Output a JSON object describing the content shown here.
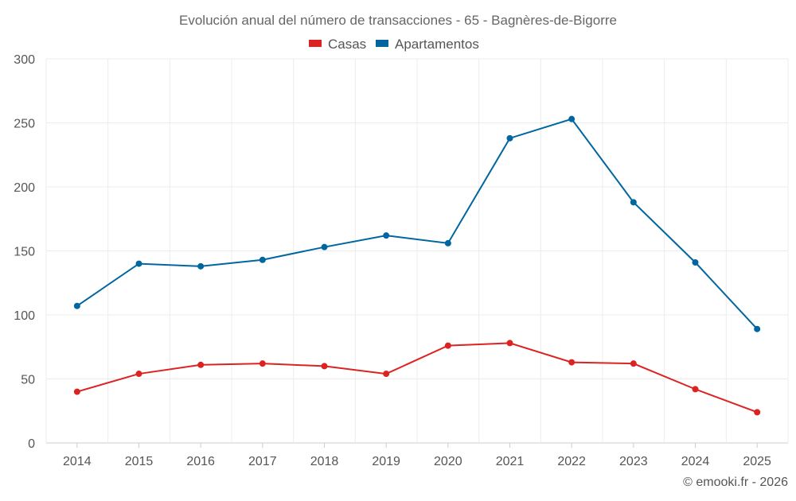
{
  "chart_data": {
    "type": "line",
    "title": "Evolución anual del número de transacciones - 65 - Bagnères-de-Bigorre",
    "categories": [
      "2014",
      "2015",
      "2016",
      "2017",
      "2018",
      "2019",
      "2020",
      "2021",
      "2022",
      "2023",
      "2024",
      "2025"
    ],
    "series": [
      {
        "name": "Casas",
        "color": "#dd2222",
        "values": [
          40,
          54,
          61,
          62,
          60,
          54,
          76,
          78,
          63,
          62,
          42,
          24
        ]
      },
      {
        "name": "Apartamentos",
        "color": "#0066a0",
        "values": [
          107,
          140,
          138,
          143,
          153,
          162,
          156,
          238,
          253,
          188,
          141,
          89
        ]
      }
    ],
    "yticks": [
      "0",
      "50",
      "100",
      "150",
      "200",
      "250",
      "300"
    ],
    "ylim": [
      0,
      300
    ],
    "xlabel": "",
    "ylabel": "",
    "grid": true,
    "legend_position": "top-center"
  },
  "credit": "© emooki.fr - 2026"
}
